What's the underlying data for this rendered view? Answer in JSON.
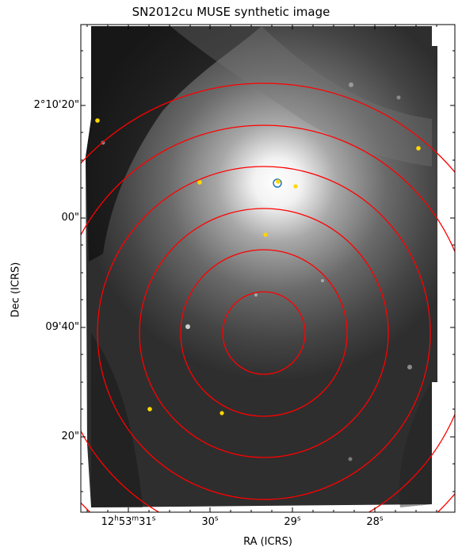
{
  "figure": {
    "title": "SN2012cu MUSE synthetic image",
    "xlabel": "RA (ICRS)",
    "ylabel": "Dec (ICRS)"
  },
  "axes": {
    "dec_ticks": [
      "2°10'20\"",
      "00\"",
      "09'40\"",
      "20\""
    ],
    "ra_ticks": [
      {
        "h": "12",
        "h_unit": "h",
        "m": "53",
        "m_unit": "m",
        "s": "31",
        "s_unit": "s"
      },
      {
        "s": "30",
        "s_unit": "s"
      },
      {
        "s": "29",
        "s_unit": "s"
      },
      {
        "s": "28",
        "s_unit": "s"
      }
    ]
  },
  "overlays": {
    "annulus_color": "#ff0000",
    "annulus_count": 6,
    "source_marker_color": "#ffd700",
    "sn_marker_color": "#1f77b4",
    "image_colormap": "gray"
  }
}
